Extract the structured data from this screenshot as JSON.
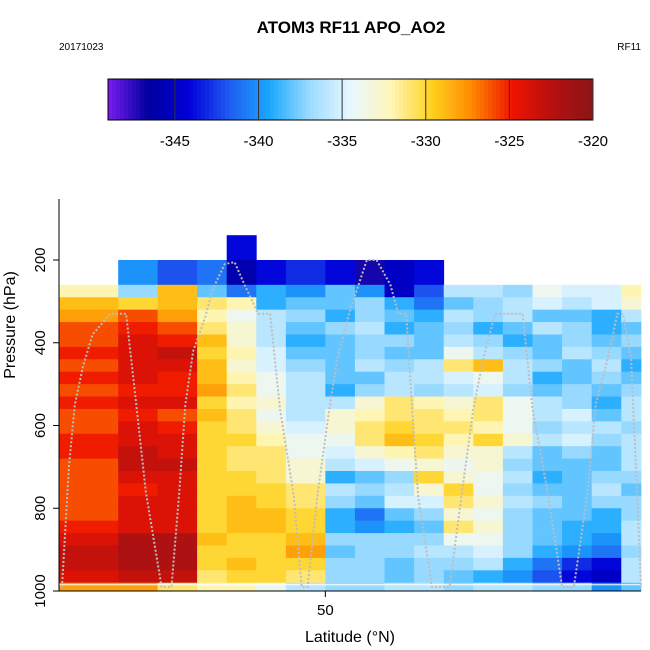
{
  "chart_data": {
    "type": "heatmap",
    "title": "ATOM3 RF11 APO_AO2",
    "date_label": "20171023",
    "flight_label": "RF11",
    "xlabel": "Latitude (°N)",
    "ylabel": "Pressure (hPa)",
    "x_ticks": [
      50
    ],
    "y_ticks": [
      200,
      400,
      600,
      800,
      1000
    ],
    "xlim": [
      23,
      82
    ],
    "ylim": [
      1000,
      0
    ],
    "colorbar": {
      "ticks": [
        -345,
        -340,
        -335,
        -330,
        -325,
        -320
      ],
      "range": [
        -349,
        -320
      ],
      "colors": [
        "#7a1cf0",
        "#00009e",
        "#0000d8",
        "#1f5cf0",
        "#1ba8ff",
        "#9cdcff",
        "#e8f7ff",
        "#fff6b8",
        "#ffd21f",
        "#ff8a00",
        "#ef1400",
        "#b51010",
        "#8a1616"
      ]
    },
    "pressure_levels": [
      140,
      200,
      260,
      290,
      320,
      350,
      380,
      410,
      440,
      470,
      500,
      530,
      560,
      590,
      620,
      650,
      680,
      710,
      740,
      770,
      800,
      830,
      860,
      890,
      920,
      950,
      980,
      1010
    ],
    "lat_edges": [
      23,
      29,
      33,
      37,
      40,
      43,
      46,
      50,
      53,
      56,
      59,
      62,
      65,
      68,
      71,
      74,
      77,
      80,
      82
    ],
    "values": [
      [
        null,
        null,
        null,
        null,
        -344,
        null,
        null,
        null,
        null,
        null,
        null,
        null,
        null,
        null,
        null,
        null,
        null,
        null
      ],
      [
        null,
        -340,
        -342,
        -341,
        -346,
        -344,
        -343,
        -344,
        -347,
        -345,
        -344,
        null,
        null,
        null,
        null,
        null,
        null,
        null
      ],
      [
        -332,
        -337,
        -329,
        -338,
        -341,
        -339,
        -340,
        -338,
        -340,
        -345,
        -342,
        -336,
        -336,
        -337,
        -334,
        -335,
        -335,
        -332
      ],
      [
        -329,
        -330,
        -329,
        -331,
        -332,
        -339,
        -338,
        -338,
        -337,
        -339,
        -341,
        -338,
        -337,
        -336,
        -335,
        -336,
        -335,
        -333
      ],
      [
        -328,
        -326,
        -328,
        -332,
        -334,
        -336,
        -337,
        -339,
        -337,
        -338,
        -339,
        -336,
        -337,
        -336,
        -338,
        -338,
        -339,
        -336
      ],
      [
        -326,
        -325,
        -326,
        -331,
        -333,
        -336,
        -338,
        -337,
        -336,
        -339,
        -338,
        -337,
        -339,
        -338,
        -336,
        -337,
        -339,
        -338
      ],
      [
        -326,
        -324,
        -325,
        -329,
        -333,
        -336,
        -339,
        -338,
        -337,
        -337,
        -338,
        -336,
        -337,
        -339,
        -338,
        -337,
        -338,
        -337
      ],
      [
        -325,
        -324,
        -323,
        -330,
        -332,
        -335,
        -338,
        -338,
        -337,
        -338,
        -338,
        -334,
        -336,
        -337,
        -338,
        -336,
        -337,
        -338
      ],
      [
        -326,
        -324,
        -324,
        -329,
        -333,
        -335,
        -337,
        -338,
        -336,
        -337,
        -336,
        -331,
        -329,
        -336,
        -337,
        -338,
        -336,
        -339
      ],
      [
        -325,
        -324,
        -325,
        -329,
        -332,
        -334,
        -336,
        -338,
        -338,
        -336,
        -336,
        -335,
        -334,
        -336,
        -339,
        -338,
        -337,
        -338
      ],
      [
        -326,
        -325,
        -325,
        -328,
        -331,
        -334,
        -336,
        -339,
        -337,
        -336,
        -337,
        -336,
        -335,
        -337,
        -338,
        -337,
        -338,
        -337
      ],
      [
        -325,
        -324,
        -324,
        -330,
        -332,
        -333,
        -336,
        -336,
        -333,
        -331,
        -332,
        -333,
        -331,
        -334,
        -336,
        -337,
        -339,
        -336
      ],
      [
        -326,
        -325,
        -326,
        -329,
        -331,
        -334,
        -336,
        -333,
        -332,
        -331,
        -331,
        -332,
        -331,
        -334,
        -336,
        -335,
        -338,
        -336
      ],
      [
        -326,
        -324,
        -325,
        -330,
        -331,
        -333,
        -335,
        -333,
        -331,
        -330,
        -331,
        -331,
        -332,
        -334,
        -337,
        -336,
        -336,
        -337
      ],
      [
        -325,
        -324,
        -324,
        -330,
        -330,
        -332,
        -334,
        -334,
        -331,
        -329,
        -330,
        -332,
        -330,
        -333,
        -336,
        -335,
        -337,
        -336
      ],
      [
        -325,
        -323,
        -324,
        -330,
        -331,
        -331,
        -334,
        -335,
        -333,
        -332,
        -331,
        -333,
        -333,
        -336,
        -338,
        -337,
        -338,
        -336
      ],
      [
        -326,
        -323,
        -323,
        -330,
        -331,
        -331,
        -333,
        -336,
        -335,
        -334,
        -333,
        -334,
        -333,
        -337,
        -338,
        -338,
        -338,
        -336
      ],
      [
        -326,
        -324,
        -324,
        -330,
        -330,
        -331,
        -333,
        -339,
        -338,
        -337,
        -330,
        -333,
        -334,
        -336,
        -339,
        -338,
        -337,
        -337
      ],
      [
        -326,
        -325,
        -324,
        -330,
        -330,
        -330,
        -331,
        -336,
        -337,
        -336,
        -333,
        -330,
        -334,
        -337,
        -338,
        -338,
        -336,
        -338
      ],
      [
        -326,
        -324,
        -324,
        -330,
        -329,
        -330,
        -331,
        -337,
        -338,
        -335,
        -335,
        -331,
        -333,
        -336,
        -337,
        -338,
        -337,
        -337
      ],
      [
        -326,
        -324,
        -324,
        -330,
        -329,
        -329,
        -330,
        -339,
        -341,
        -338,
        -337,
        -333,
        -334,
        -337,
        -338,
        -338,
        -339,
        -337
      ],
      [
        -325,
        -324,
        -324,
        -330,
        -329,
        -329,
        -330,
        -339,
        -340,
        -339,
        -338,
        -331,
        -333,
        -337,
        -338,
        -339,
        -339,
        -336
      ],
      [
        -324,
        -322,
        -322,
        -329,
        -330,
        -330,
        -329,
        -337,
        -337,
        -337,
        -337,
        -334,
        -334,
        -337,
        -338,
        -339,
        -340,
        -336
      ],
      [
        -323,
        -322,
        -322,
        -330,
        -330,
        -330,
        -328,
        -338,
        -337,
        -337,
        -336,
        -336,
        -335,
        -337,
        -339,
        -340,
        -341,
        -337
      ],
      [
        -323,
        -322,
        -322,
        -330,
        -329,
        -330,
        -330,
        -337,
        -337,
        -338,
        -337,
        -337,
        -336,
        -339,
        -341,
        -343,
        -344,
        -336
      ],
      [
        -324,
        -323,
        -323,
        -331,
        -330,
        -330,
        -331,
        -337,
        -337,
        -338,
        -337,
        -338,
        -339,
        -340,
        -342,
        -344,
        -345,
        -336
      ],
      [
        -328,
        -328,
        -331,
        -332,
        -332,
        -334,
        -336,
        -337,
        -337,
        -336,
        -336,
        -337,
        -336,
        -336,
        -337,
        -337,
        -340,
        -338
      ],
      [
        null,
        null,
        null,
        null,
        null,
        null,
        null,
        null,
        null,
        null,
        null,
        null,
        null,
        null,
        null,
        null,
        null,
        null
      ]
    ],
    "flight_track": {
      "color": "#bdbdbd",
      "lat": [
        23.3,
        24,
        24.6,
        25.4,
        26.4,
        28.2,
        29.8,
        30.6,
        31.8,
        33.4,
        34.4,
        35.2,
        35.8,
        36.6,
        37.8,
        38.6,
        39.8,
        40.8,
        41.8,
        43.2,
        44.4,
        45.4,
        46.8,
        47.6,
        48.2,
        49.2,
        50.4,
        51.2,
        52.4,
        54.2,
        55.2,
        56.6,
        57.4,
        58.2,
        58.8,
        59.4,
        60.8,
        62.6,
        63.8,
        65,
        66,
        67.2,
        68.8,
        70,
        71,
        72.6,
        74,
        75.2,
        76.6,
        77.4,
        78.6,
        79.6,
        80.2,
        81,
        81.6,
        82
      ],
      "pressure": [
        990,
        700,
        550,
        460,
        380,
        330,
        330,
        500,
        760,
        990,
        990,
        760,
        550,
        420,
        340,
        270,
        210,
        205,
        260,
        330,
        330,
        560,
        770,
        990,
        990,
        770,
        560,
        440,
        330,
        200,
        200,
        260,
        330,
        330,
        560,
        770,
        990,
        990,
        770,
        560,
        440,
        330,
        330,
        330,
        560,
        770,
        990,
        990,
        760,
        550,
        440,
        330,
        330,
        440,
        760,
        990
      ]
    }
  }
}
